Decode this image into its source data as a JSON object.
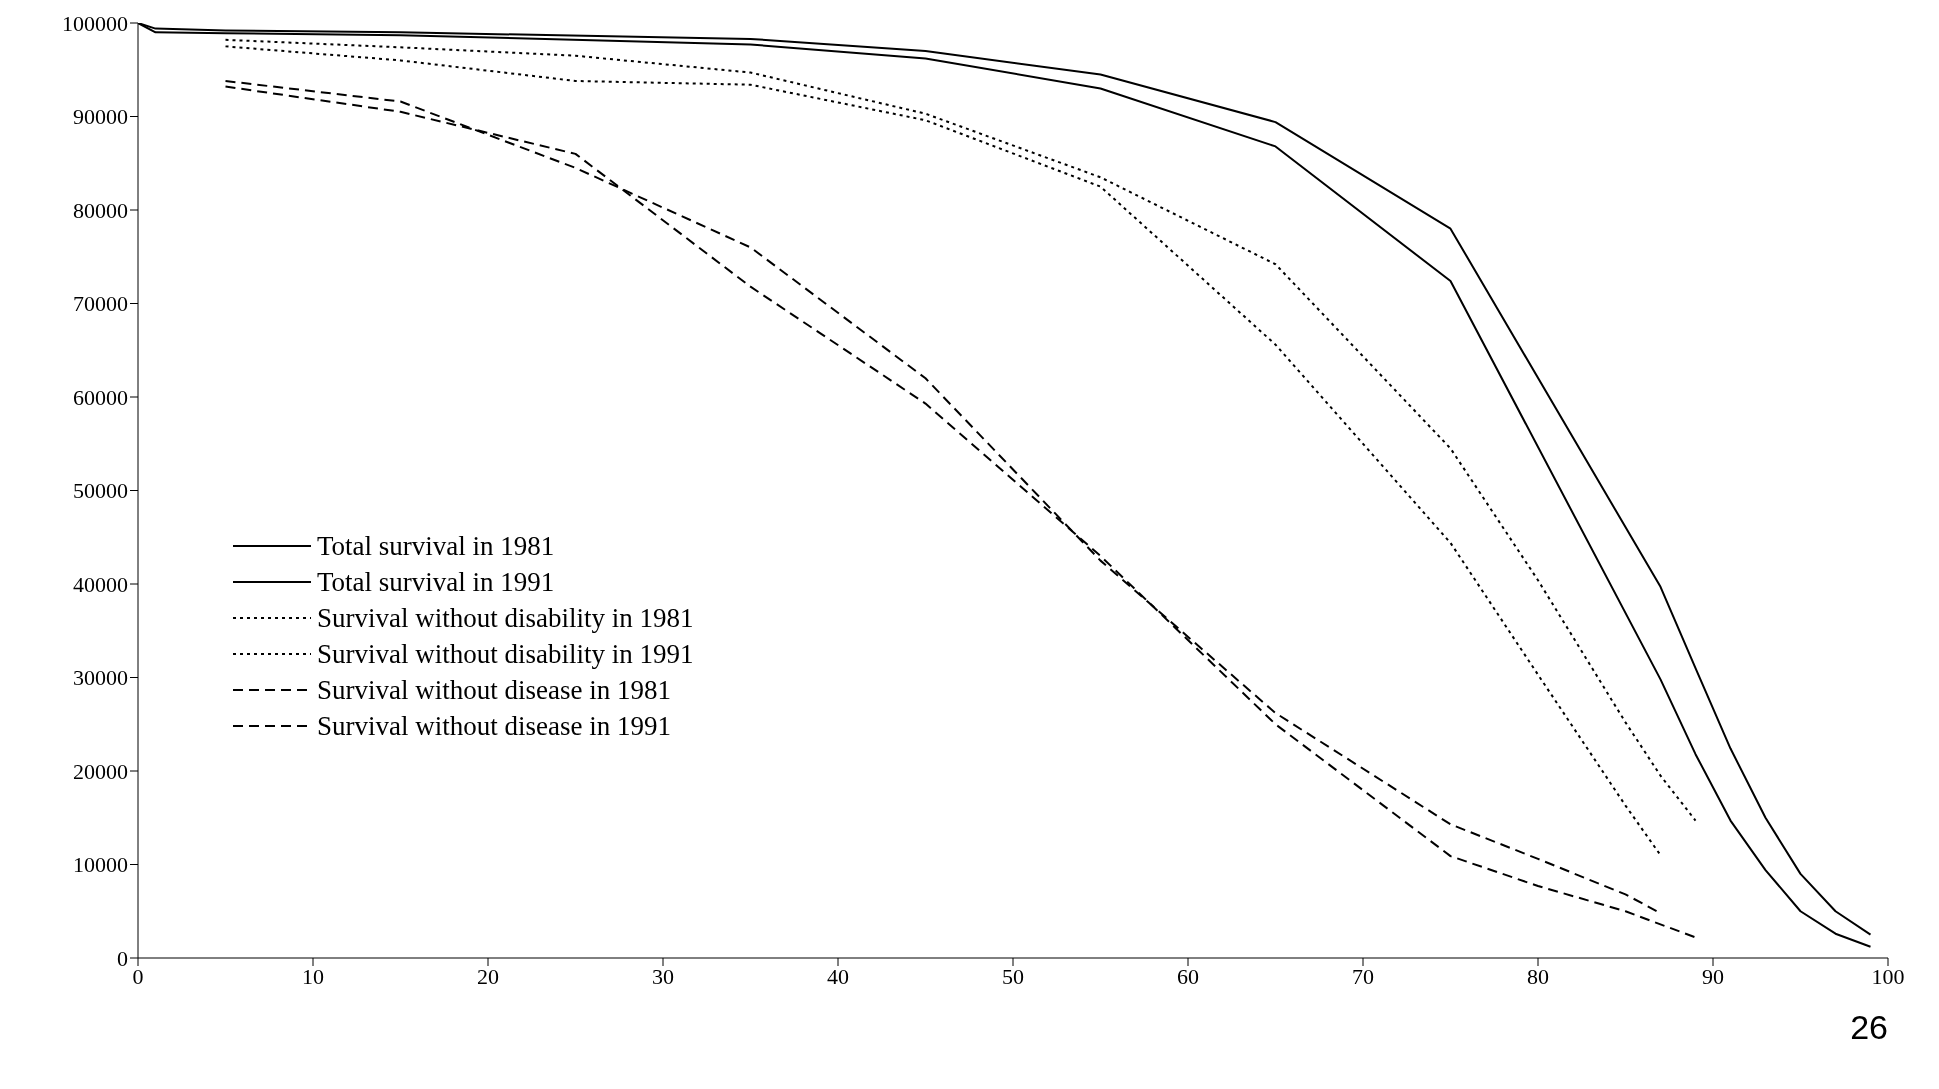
{
  "chart_data": {
    "type": "line",
    "xlim": [
      0,
      100
    ],
    "xticks": [
      0,
      10,
      20,
      30,
      40,
      50,
      60,
      70,
      80,
      90,
      100
    ],
    "ylim": [
      0,
      100000
    ],
    "yticks": [
      0,
      10000,
      20000,
      30000,
      40000,
      50000,
      60000,
      70000,
      80000,
      90000,
      100000
    ],
    "grid": false,
    "legend": "left",
    "marker": "none",
    "annotations": [
      "26"
    ],
    "series": [
      {
        "name": "Total survival in 1981",
        "color": "#000000",
        "line_style": "solid",
        "x": [
          0,
          1,
          5,
          15,
          35,
          45,
          55,
          65,
          75,
          87,
          89,
          91,
          93,
          95,
          97,
          99
        ],
        "values": [
          100000,
          99400,
          99200,
          99000,
          98300,
          97000,
          94500,
          89400,
          78000,
          39700,
          31000,
          22400,
          15000,
          9000,
          5000,
          2500
        ]
      },
      {
        "name": "Total survival in 1991",
        "color": "#000000",
        "line_style": "solid",
        "x": [
          0,
          1,
          5,
          15,
          35,
          45,
          55,
          65,
          75,
          87,
          89,
          91,
          93,
          95,
          97,
          99
        ],
        "values": [
          100000,
          99000,
          98900,
          98700,
          97700,
          96200,
          93000,
          86800,
          72400,
          29800,
          21800,
          14700,
          9400,
          5000,
          2600,
          1200
        ]
      },
      {
        "name": "Survival without disability in 1981",
        "color": "#000000",
        "line_style": "dotted",
        "x": [
          5,
          15,
          25,
          35,
          45,
          55,
          65,
          75,
          80,
          85,
          87,
          89
        ],
        "values": [
          98200,
          97400,
          96500,
          94700,
          90300,
          83500,
          74200,
          54500,
          40400,
          25200,
          19500,
          14700
        ]
      },
      {
        "name": "Survival without disability in 1991",
        "color": "#000000",
        "line_style": "dotted",
        "x": [
          5,
          15,
          25,
          35,
          45,
          55,
          65,
          75,
          80,
          85,
          87
        ],
        "values": [
          97500,
          96000,
          93800,
          93400,
          89600,
          82500,
          65600,
          44400,
          30300,
          16300,
          11000
        ]
      },
      {
        "name": "Survival without disease in 1981",
        "color": "#000000",
        "line_style": "dashed",
        "x": [
          5,
          15,
          25,
          35,
          45,
          55,
          65,
          75,
          80,
          85,
          87
        ],
        "values": [
          93800,
          91600,
          84500,
          76000,
          62000,
          42500,
          26200,
          14300,
          10600,
          6800,
          4800
        ]
      },
      {
        "name": "Survival without disease in 1991",
        "color": "#000000",
        "line_style": "dashed",
        "x": [
          5,
          15,
          25,
          35,
          45,
          55,
          65,
          75,
          80,
          85,
          89
        ],
        "values": [
          93200,
          90500,
          86000,
          71800,
          59300,
          43000,
          25000,
          10900,
          7700,
          5000,
          2200
        ]
      }
    ]
  }
}
